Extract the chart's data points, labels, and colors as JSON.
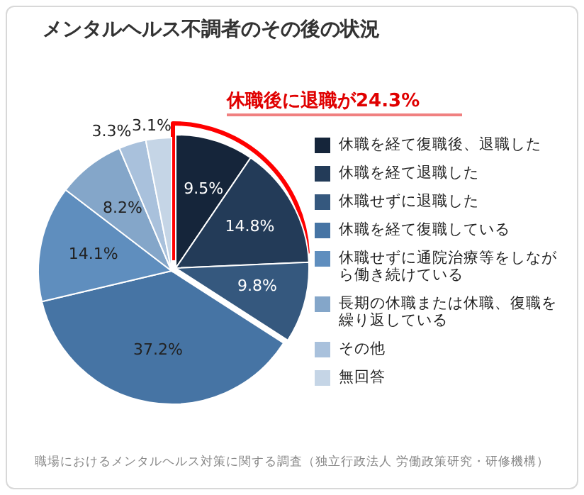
{
  "chart_data": {
    "type": "pie",
    "title": "メンタルヘルス不調者のその後の状況",
    "categories": [
      "休職を経て復職後、退職した",
      "休職を経て退職した",
      "休職せずに退職した",
      "休職を経て復職している",
      "休職せずに通院治療等をしながら働き続けている",
      "長期の休職または休職、復職を繰り返している",
      "その他",
      "無回答"
    ],
    "values": [
      9.5,
      14.8,
      9.8,
      37.2,
      14.1,
      8.2,
      3.3,
      3.1
    ],
    "value_labels": [
      "9.5%",
      "14.8%",
      "9.8%",
      "37.2%",
      "14.1%",
      "8.2%",
      "3.3%",
      "3.1%"
    ],
    "colors": [
      "#15253a",
      "#233b58",
      "#35587e",
      "#4674a4",
      "#5f8ebe",
      "#84a6c9",
      "#a9c1dc",
      "#c5d5e6"
    ],
    "legend": "right",
    "annotations": [
      "休職後に退職が24.3%",
      "職場におけるメンタルヘルス対策に関する調査（独立行政法人 労働政策研究・研修機構）"
    ]
  }
}
